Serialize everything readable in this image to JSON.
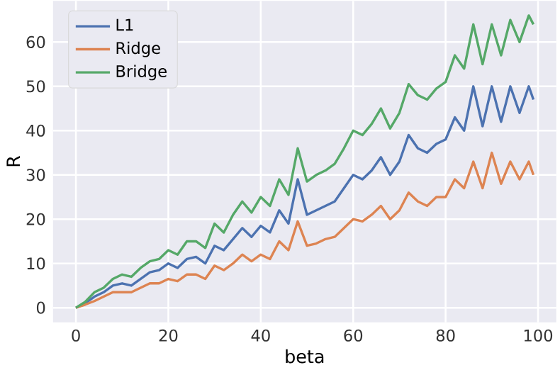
{
  "chart_data": {
    "type": "line",
    "xlabel": "beta",
    "ylabel": "R",
    "xlim": [
      -4.95,
      103.95
    ],
    "ylim": [
      -3.3,
      69.3
    ],
    "xticks": [
      0,
      20,
      40,
      60,
      80,
      100
    ],
    "yticks": [
      0,
      10,
      20,
      30,
      40,
      50,
      60
    ],
    "grid": true,
    "legend": "top left",
    "marker": "none",
    "line_style": "solid",
    "x": [
      0,
      2,
      4,
      6,
      8,
      10,
      12,
      14,
      16,
      18,
      20,
      22,
      24,
      26,
      28,
      30,
      32,
      34,
      36,
      38,
      40,
      42,
      44,
      46,
      48,
      50,
      52,
      54,
      56,
      58,
      60,
      62,
      64,
      66,
      68,
      70,
      72,
      74,
      76,
      78,
      80,
      82,
      84,
      86,
      88,
      90,
      92,
      94,
      96,
      98,
      99
    ],
    "series": [
      {
        "name": "L1",
        "color": "#4c72b0",
        "values": [
          0,
          1,
          2.5,
          3.5,
          5,
          5.5,
          5,
          6.5,
          8,
          8.5,
          10,
          9,
          11,
          11.5,
          10,
          14,
          13,
          15.5,
          18,
          16,
          18.5,
          17,
          22,
          19,
          29,
          21,
          22,
          23,
          24,
          27,
          30,
          29,
          31,
          34,
          30,
          33,
          39,
          36,
          35,
          37,
          38,
          43,
          40,
          50,
          41,
          50,
          42,
          50,
          44,
          50,
          47
        ]
      },
      {
        "name": "Ridge",
        "color": "#dd8452",
        "values": [
          0,
          0.7,
          1.5,
          2.5,
          3.5,
          3.5,
          3.5,
          4.5,
          5.5,
          5.5,
          6.5,
          6,
          7.5,
          7.5,
          6.5,
          9.5,
          8.5,
          10,
          12,
          10.5,
          12,
          11,
          15,
          13,
          19.5,
          14,
          14.5,
          15.5,
          16,
          18,
          20,
          19.5,
          21,
          23,
          20,
          22,
          26,
          24,
          23,
          25,
          25,
          29,
          27,
          33,
          27,
          35,
          28,
          33,
          29,
          33,
          30
        ]
      },
      {
        "name": "Bridge",
        "color": "#55a868",
        "values": [
          0,
          1.3,
          3.5,
          4.5,
          6.5,
          7.5,
          7,
          9,
          10.5,
          11,
          13,
          12,
          15,
          15,
          13.5,
          19,
          17,
          21,
          24,
          21.5,
          25,
          23,
          29,
          25.5,
          36,
          28.5,
          30,
          31,
          32.5,
          36,
          40,
          39,
          41.5,
          45,
          40.5,
          44,
          50.5,
          48,
          47,
          49.5,
          51,
          57,
          54,
          64,
          55,
          64,
          57,
          65,
          60,
          66,
          64
        ]
      }
    ]
  }
}
